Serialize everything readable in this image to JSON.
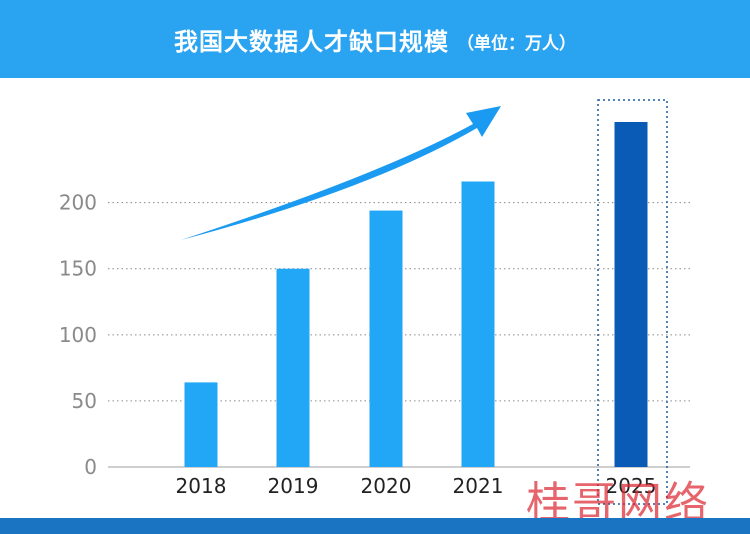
{
  "header": {
    "title": "我国大数据人才缺口规模",
    "subtitle": "（单位：万人）"
  },
  "colors": {
    "header_bg": "#2aa3f0",
    "bar": "#22a7f6",
    "bar_highlight": "#0a5bb5",
    "arrow": "#1a9af0",
    "footer": "#1b74c2"
  },
  "watermark": "桂哥网络",
  "chart_data": {
    "type": "bar",
    "title": "我国大数据人才缺口规模",
    "subtitle": "（单位：万人）",
    "categories": [
      "2018",
      "2019",
      "2020",
      "2021",
      "2025"
    ],
    "values": [
      64,
      150,
      194,
      216,
      261
    ],
    "highlight": "2025",
    "ylim": [
      0,
      261
    ],
    "yticks": [
      0,
      50,
      100,
      150,
      200
    ],
    "grid": true,
    "grid_style": "dotted",
    "annotations": [
      "upward trend arrow",
      "dotted box around 2025"
    ]
  }
}
